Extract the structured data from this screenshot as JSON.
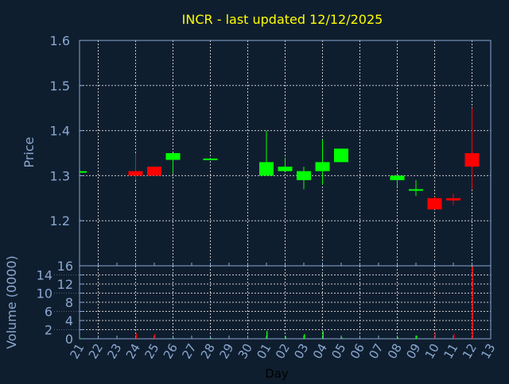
{
  "chart_data": {
    "type": "candlestick",
    "title": "INCR - last updated 12/12/2025",
    "xlabel": "Day",
    "ylabel": "Price",
    "volume_label": "Volume (0000)",
    "x_ticks": [
      "21",
      "22",
      "23",
      "24",
      "25",
      "26",
      "27",
      "28",
      "29",
      "30",
      "01",
      "02",
      "03",
      "04",
      "05",
      "06",
      "07",
      "08",
      "09",
      "10",
      "11",
      "12",
      "13"
    ],
    "price_ticks": [
      1.2,
      1.3,
      1.4,
      1.5,
      1.6
    ],
    "price_range": [
      1.1,
      1.6
    ],
    "volume_ticks": [
      0,
      2,
      4,
      6,
      8,
      10,
      12,
      14,
      16
    ],
    "volume_range": [
      0,
      16
    ],
    "grid": true,
    "colors": {
      "up": "#00ff00",
      "down": "#ff0000",
      "background": "#0f1e2f",
      "axis": "#8aa8d0",
      "title": "#ffff00",
      "grid": "#c8c8c8"
    },
    "candles": [
      {
        "day": "21",
        "open": 1.31,
        "high": 1.31,
        "low": 1.31,
        "close": 1.31,
        "volume": 0.1
      },
      {
        "day": "24",
        "open": 1.31,
        "high": 1.35,
        "low": 1.29,
        "close": 1.3,
        "volume": 1.2
      },
      {
        "day": "25",
        "open": 1.32,
        "high": 1.32,
        "low": 1.3,
        "close": 1.3,
        "volume": 1.0
      },
      {
        "day": "26",
        "open": 1.335,
        "high": 1.35,
        "low": 1.305,
        "close": 1.35,
        "volume": 0.2
      },
      {
        "day": "28",
        "open": 1.336,
        "high": 1.338,
        "low": 1.336,
        "close": 1.338,
        "volume": 0.2
      },
      {
        "day": "01",
        "open": 1.3,
        "high": 1.4,
        "low": 1.3,
        "close": 1.33,
        "volume": 1.7
      },
      {
        "day": "02",
        "open": 1.31,
        "high": 1.34,
        "low": 1.31,
        "close": 1.32,
        "volume": 0.5
      },
      {
        "day": "03",
        "open": 1.29,
        "high": 1.32,
        "low": 1.27,
        "close": 1.31,
        "volume": 1.0
      },
      {
        "day": "04",
        "open": 1.31,
        "high": 1.38,
        "low": 1.28,
        "close": 1.33,
        "volume": 1.7
      },
      {
        "day": "05",
        "open": 1.33,
        "high": 1.36,
        "low": 1.33,
        "close": 1.36,
        "volume": 0.3
      },
      {
        "day": "08",
        "open": 1.29,
        "high": 1.3,
        "low": 1.275,
        "close": 1.3,
        "volume": 0.3
      },
      {
        "day": "09",
        "open": 1.268,
        "high": 1.29,
        "low": 1.255,
        "close": 1.27,
        "volume": 0.7
      },
      {
        "day": "10",
        "open": 1.25,
        "high": 1.253,
        "low": 1.225,
        "close": 1.225,
        "volume": 1.4
      },
      {
        "day": "11",
        "open": 1.25,
        "high": 1.26,
        "low": 1.235,
        "close": 1.245,
        "volume": 1.0
      },
      {
        "day": "12",
        "open": 1.35,
        "high": 1.45,
        "low": 1.27,
        "close": 1.32,
        "volume": 15.8
      }
    ]
  }
}
